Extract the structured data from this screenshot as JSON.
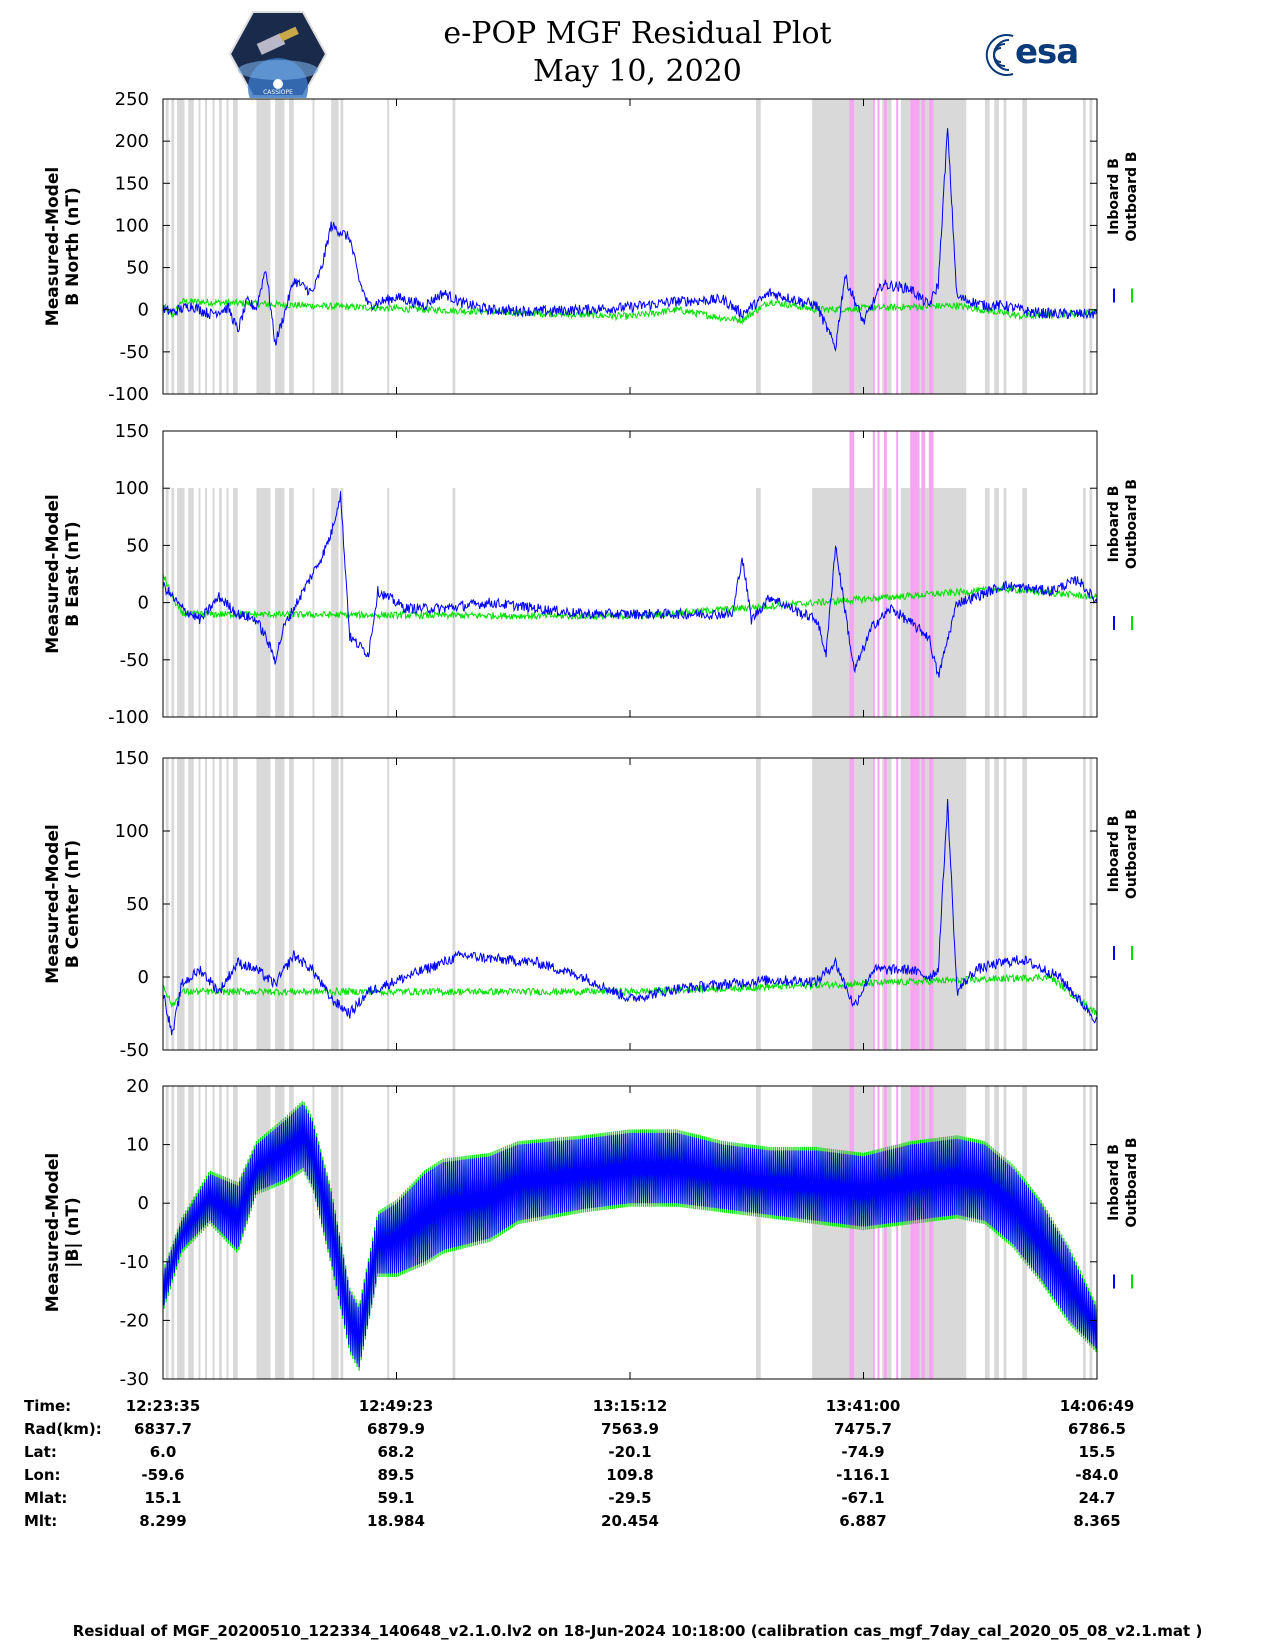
{
  "header": {
    "title_line1": "e-POP MGF Residual Plot",
    "title_line2": "May 10, 2020",
    "left_logo_text": "CASSIOPE",
    "right_logo_text": "esa"
  },
  "legend": {
    "inboard": "Inboard B",
    "outboard": "Outboard B",
    "inboard_color": "#0000ff",
    "outboard_color": "#00e000"
  },
  "colors": {
    "quality_flag": "#d9d9d9",
    "special_flag": "#f4a6f0"
  },
  "chart_data": [
    {
      "type": "line",
      "ylabel": [
        "Measured-Model",
        "B North (nT)"
      ],
      "ylim": [
        -100,
        250
      ],
      "yticks": [
        -100,
        -50,
        0,
        50,
        100,
        150,
        200,
        250
      ],
      "x": [
        0,
        0.25,
        0.5,
        0.75,
        1
      ],
      "xticklabels": [
        "12:23:35",
        "12:49:23",
        "13:15:12",
        "13:41:00",
        "14:06:49"
      ],
      "xlim": [
        0,
        1
      ],
      "series": [
        {
          "name": "Inboard B",
          "color": "#0000ff",
          "points": [
            [
              0,
              0
            ],
            [
              0.01,
              -3
            ],
            [
              0.03,
              5
            ],
            [
              0.05,
              -5
            ],
            [
              0.07,
              2
            ],
            [
              0.08,
              -25
            ],
            [
              0.09,
              10
            ],
            [
              0.1,
              2
            ],
            [
              0.11,
              50
            ],
            [
              0.12,
              -40
            ],
            [
              0.13,
              -5
            ],
            [
              0.14,
              35
            ],
            [
              0.16,
              20
            ],
            [
              0.17,
              50
            ],
            [
              0.18,
              100
            ],
            [
              0.2,
              85
            ],
            [
              0.21,
              35
            ],
            [
              0.22,
              5
            ],
            [
              0.25,
              15
            ],
            [
              0.28,
              5
            ],
            [
              0.3,
              20
            ],
            [
              0.32,
              8
            ],
            [
              0.35,
              0
            ],
            [
              0.4,
              -2
            ],
            [
              0.45,
              0
            ],
            [
              0.5,
              3
            ],
            [
              0.55,
              10
            ],
            [
              0.6,
              12
            ],
            [
              0.62,
              -5
            ],
            [
              0.65,
              20
            ],
            [
              0.7,
              5
            ],
            [
              0.72,
              -45
            ],
            [
              0.73,
              40
            ],
            [
              0.75,
              -15
            ],
            [
              0.77,
              30
            ],
            [
              0.8,
              25
            ],
            [
              0.82,
              5
            ],
            [
              0.83,
              30
            ],
            [
              0.84,
              215
            ],
            [
              0.85,
              15
            ],
            [
              0.88,
              5
            ],
            [
              0.9,
              5
            ],
            [
              0.93,
              -3
            ],
            [
              0.96,
              -5
            ],
            [
              1,
              -5
            ]
          ]
        },
        {
          "name": "Outboard B",
          "color": "#00e000",
          "points": [
            [
              0,
              5
            ],
            [
              0.01,
              -8
            ],
            [
              0.02,
              10
            ],
            [
              0.5,
              -8
            ],
            [
              0.55,
              0
            ],
            [
              0.6,
              -10
            ],
            [
              0.62,
              -12
            ],
            [
              0.65,
              10
            ],
            [
              0.7,
              0
            ],
            [
              0.85,
              5
            ],
            [
              0.92,
              -8
            ],
            [
              1,
              -3
            ]
          ]
        }
      ]
    },
    {
      "type": "line",
      "ylabel": [
        "Measured-Model",
        "B East (nT)"
      ],
      "ylim": [
        -100,
        150
      ],
      "yticks": [
        -100,
        -50,
        0,
        50,
        100,
        150
      ],
      "x": [
        0,
        0.25,
        0.5,
        0.75,
        1
      ],
      "xticklabels": [
        "12:23:35",
        "12:49:23",
        "13:15:12",
        "13:41:00",
        "14:06:49"
      ],
      "xlim": [
        0,
        1
      ],
      "series": [
        {
          "name": "Inboard B",
          "color": "#0000ff",
          "points": [
            [
              0,
              15
            ],
            [
              0.02,
              -5
            ],
            [
              0.04,
              -15
            ],
            [
              0.06,
              5
            ],
            [
              0.08,
              -10
            ],
            [
              0.1,
              -15
            ],
            [
              0.11,
              -30
            ],
            [
              0.12,
              -50
            ],
            [
              0.13,
              -20
            ],
            [
              0.15,
              10
            ],
            [
              0.17,
              40
            ],
            [
              0.18,
              60
            ],
            [
              0.19,
              95
            ],
            [
              0.2,
              -30
            ],
            [
              0.22,
              -45
            ],
            [
              0.23,
              10
            ],
            [
              0.26,
              -5
            ],
            [
              0.3,
              -5
            ],
            [
              0.35,
              0
            ],
            [
              0.4,
              -5
            ],
            [
              0.45,
              -10
            ],
            [
              0.5,
              -10
            ],
            [
              0.55,
              -10
            ],
            [
              0.61,
              -10
            ],
            [
              0.62,
              40
            ],
            [
              0.63,
              -15
            ],
            [
              0.65,
              5
            ],
            [
              0.68,
              -8
            ],
            [
              0.7,
              -15
            ],
            [
              0.71,
              -45
            ],
            [
              0.72,
              50
            ],
            [
              0.74,
              -60
            ],
            [
              0.76,
              -20
            ],
            [
              0.78,
              -5
            ],
            [
              0.82,
              -30
            ],
            [
              0.83,
              -65
            ],
            [
              0.85,
              0
            ],
            [
              0.87,
              5
            ],
            [
              0.9,
              15
            ],
            [
              0.95,
              10
            ],
            [
              0.98,
              20
            ],
            [
              1,
              0
            ]
          ]
        },
        {
          "name": "Outboard B",
          "color": "#00e000",
          "points": [
            [
              0,
              25
            ],
            [
              0.01,
              5
            ],
            [
              0.02,
              -10
            ],
            [
              0.5,
              -12
            ],
            [
              0.9,
              12
            ],
            [
              1,
              5
            ]
          ]
        }
      ]
    },
    {
      "type": "line",
      "ylabel": [
        "Measured-Model",
        "B Center (nT)"
      ],
      "ylim": [
        -50,
        150
      ],
      "yticks": [
        -50,
        0,
        50,
        100,
        150
      ],
      "x": [
        0,
        0.25,
        0.5,
        0.75,
        1
      ],
      "xticklabels": [
        "12:23:35",
        "12:49:23",
        "13:15:12",
        "13:41:00",
        "14:06:49"
      ],
      "xlim": [
        0,
        1
      ],
      "series": [
        {
          "name": "Inboard B",
          "color": "#0000ff",
          "points": [
            [
              0,
              -10
            ],
            [
              0.01,
              -40
            ],
            [
              0.02,
              -5
            ],
            [
              0.04,
              5
            ],
            [
              0.06,
              -10
            ],
            [
              0.08,
              10
            ],
            [
              0.1,
              5
            ],
            [
              0.12,
              -5
            ],
            [
              0.14,
              15
            ],
            [
              0.16,
              5
            ],
            [
              0.18,
              -15
            ],
            [
              0.2,
              -25
            ],
            [
              0.22,
              -10
            ],
            [
              0.26,
              0
            ],
            [
              0.3,
              10
            ],
            [
              0.32,
              15
            ],
            [
              0.36,
              12
            ],
            [
              0.4,
              10
            ],
            [
              0.45,
              0
            ],
            [
              0.5,
              -15
            ],
            [
              0.55,
              -8
            ],
            [
              0.6,
              -5
            ],
            [
              0.65,
              -2
            ],
            [
              0.7,
              -3
            ],
            [
              0.72,
              10
            ],
            [
              0.74,
              -20
            ],
            [
              0.76,
              5
            ],
            [
              0.8,
              5
            ],
            [
              0.82,
              0
            ],
            [
              0.83,
              5
            ],
            [
              0.84,
              120
            ],
            [
              0.85,
              -10
            ],
            [
              0.87,
              5
            ],
            [
              0.9,
              10
            ],
            [
              0.92,
              12
            ],
            [
              0.96,
              0
            ],
            [
              1,
              -30
            ]
          ]
        },
        {
          "name": "Outboard B",
          "color": "#00e000",
          "points": [
            [
              0,
              -5
            ],
            [
              0.01,
              -20
            ],
            [
              0.02,
              -10
            ],
            [
              0.5,
              -10
            ],
            [
              0.95,
              0
            ],
            [
              1,
              -25
            ]
          ]
        }
      ]
    },
    {
      "type": "area",
      "ylabel": [
        "Measured-Model",
        "|B| (nT)"
      ],
      "ylim": [
        -30,
        20
      ],
      "yticks": [
        -30,
        -20,
        -10,
        0,
        10,
        20
      ],
      "x": [
        0,
        0.25,
        0.5,
        0.75,
        1
      ],
      "xticklabels": [
        "12:23:35",
        "12:49:23",
        "13:15:12",
        "13:41:00",
        "14:06:49"
      ],
      "xlim": [
        0,
        1
      ],
      "band": [
        [
          0,
          -18,
          -12
        ],
        [
          0.02,
          -8,
          -3
        ],
        [
          0.05,
          -3,
          5
        ],
        [
          0.08,
          -8,
          3
        ],
        [
          0.1,
          2,
          10
        ],
        [
          0.13,
          4,
          14
        ],
        [
          0.15,
          6,
          17
        ],
        [
          0.16,
          3,
          14
        ],
        [
          0.18,
          -10,
          2
        ],
        [
          0.2,
          -25,
          -15
        ],
        [
          0.21,
          -28,
          -18
        ],
        [
          0.23,
          -12,
          -2
        ],
        [
          0.25,
          -12,
          0
        ],
        [
          0.28,
          -10,
          5
        ],
        [
          0.3,
          -8,
          7
        ],
        [
          0.35,
          -6,
          8
        ],
        [
          0.38,
          -3,
          10
        ],
        [
          0.45,
          -1,
          11
        ],
        [
          0.5,
          0,
          12
        ],
        [
          0.55,
          0,
          12
        ],
        [
          0.6,
          -1,
          10
        ],
        [
          0.65,
          -2,
          9
        ],
        [
          0.7,
          -3,
          9
        ],
        [
          0.75,
          -4,
          8
        ],
        [
          0.8,
          -3,
          10
        ],
        [
          0.85,
          -2,
          11
        ],
        [
          0.88,
          -3,
          10
        ],
        [
          0.91,
          -7,
          6
        ],
        [
          0.94,
          -13,
          0
        ],
        [
          0.97,
          -20,
          -8
        ],
        [
          1,
          -25,
          -18
        ]
      ],
      "series": [
        {
          "name": "Inboard B",
          "color": "#0000ff"
        },
        {
          "name": "Outboard B",
          "color": "#00e000"
        }
      ]
    }
  ],
  "flag_intervals_gray": [
    [
      0.003,
      0.006
    ],
    [
      0.009,
      0.012
    ],
    [
      0.015,
      0.023
    ],
    [
      0.027,
      0.033
    ],
    [
      0.038,
      0.04
    ],
    [
      0.045,
      0.047
    ],
    [
      0.053,
      0.055
    ],
    [
      0.06,
      0.063
    ],
    [
      0.068,
      0.07
    ],
    [
      0.075,
      0.08
    ],
    [
      0.1,
      0.115
    ],
    [
      0.12,
      0.13
    ],
    [
      0.135,
      0.14
    ],
    [
      0.16,
      0.162
    ],
    [
      0.18,
      0.188
    ],
    [
      0.19,
      0.193
    ],
    [
      0.24,
      0.242
    ],
    [
      0.31,
      0.313
    ],
    [
      0.635,
      0.64
    ],
    [
      0.695,
      0.735
    ],
    [
      0.74,
      0.76
    ],
    [
      0.77,
      0.78
    ],
    [
      0.79,
      0.8
    ],
    [
      0.81,
      0.82
    ],
    [
      0.825,
      0.86
    ],
    [
      0.88,
      0.885
    ],
    [
      0.89,
      0.895
    ],
    [
      0.9,
      0.903
    ],
    [
      0.92,
      0.925
    ],
    [
      0.985,
      0.988
    ],
    [
      0.992,
      0.995
    ]
  ],
  "flag_intervals_pink": [
    [
      0.735,
      0.74
    ],
    [
      0.76,
      0.762
    ],
    [
      0.765,
      0.767
    ],
    [
      0.772,
      0.775
    ],
    [
      0.785,
      0.787
    ],
    [
      0.8,
      0.81
    ],
    [
      0.812,
      0.816
    ],
    [
      0.82,
      0.825
    ]
  ],
  "orbit_info": {
    "labels": [
      "Time:",
      "Rad(km):",
      "Lat:",
      "Lon:",
      "Mlat:",
      "Mlt:"
    ],
    "columns": [
      [
        "12:23:35",
        "6837.7",
        "6.0",
        "-59.6",
        "15.1",
        "8.299"
      ],
      [
        "12:49:23",
        "6879.9",
        "68.2",
        "89.5",
        "59.1",
        "18.984"
      ],
      [
        "13:15:12",
        "7563.9",
        "-20.1",
        "109.8",
        "-29.5",
        "20.454"
      ],
      [
        "13:41:00",
        "7475.7",
        "-74.9",
        "-116.1",
        "-67.1",
        "6.887"
      ],
      [
        "14:06:49",
        "6786.5",
        "15.5",
        "-84.0",
        "24.7",
        "8.365"
      ]
    ]
  },
  "footer": "Residual of MGF_20200510_122334_140648_v2.1.0.lv2 on 18-Jun-2024 10:18:00 (calibration cas_mgf_7day_cal_2020_05_08_v2.1.mat )"
}
